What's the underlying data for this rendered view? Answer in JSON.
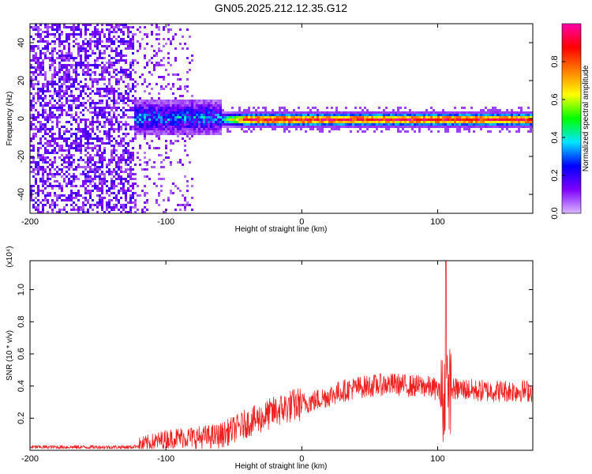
{
  "title": "GN05.2025.212.12.35.G12",
  "chart_data": [
    {
      "type": "heatmap",
      "xlabel": "Height of straight line (km)",
      "ylabel": "Frequency (Hz)",
      "xlim": [
        -200,
        170
      ],
      "ylim": [
        -50,
        50
      ],
      "x_ticks": [
        -200,
        -100,
        0,
        100
      ],
      "x_tick_labels": [
        "-200",
        "-100",
        "0",
        "100"
      ],
      "y_ticks": [
        -40,
        -20,
        0,
        20,
        40
      ],
      "y_tick_labels": [
        "-40",
        "-20",
        "0",
        "20",
        "40"
      ],
      "colorbar": {
        "label": "Normalized spectral amplitude",
        "range": [
          0.0,
          1.0
        ],
        "ticks": [
          0.0,
          0.2,
          0.4,
          0.6,
          0.8
        ],
        "tick_labels": [
          "0.0",
          "0.2",
          "0.4",
          "0.6",
          "0.8"
        ],
        "colors": [
          "#d8b8ff",
          "#7f00ff",
          "#0000ff",
          "#00e5ff",
          "#00ff00",
          "#ffff00",
          "#ff7f00",
          "#ff0000",
          "#ff00aa"
        ]
      },
      "features": [
        {
          "region": "noise",
          "x_range": [
            -200,
            -125
          ],
          "freq_range": [
            -50,
            50
          ],
          "amplitude": 0.12
        },
        {
          "region": "broadband-signal",
          "x_range": [
            -125,
            -60
          ],
          "freq_range": [
            -8,
            10
          ],
          "amplitude": 0.3
        },
        {
          "region": "narrowband-line",
          "x_range": [
            -60,
            170
          ],
          "freq": 0,
          "amplitude": 0.9
        }
      ]
    },
    {
      "type": "line",
      "xlabel": "Height of straight line (km)",
      "ylabel": "SNR (10 * v/v)",
      "y_scale_note": "(x10⁴)",
      "xlim": [
        -200,
        170
      ],
      "ylim": [
        0.0,
        1.18
      ],
      "x_ticks": [
        -200,
        -100,
        0,
        100
      ],
      "x_tick_labels": [
        "-200",
        "-100",
        "0",
        "100"
      ],
      "y_ticks": [
        0.2,
        0.4,
        0.6,
        0.8,
        1.0
      ],
      "y_tick_labels": [
        "0.2",
        "0.4",
        "0.6",
        "0.8",
        "1.0"
      ],
      "series": [
        {
          "color": "#ef2020",
          "x": [
            -200,
            -175,
            -150,
            -125,
            -110,
            -100,
            -90,
            -75,
            -60,
            -50,
            -40,
            -30,
            -20,
            -10,
            0,
            10,
            20,
            30,
            40,
            50,
            60,
            70,
            80,
            90,
            100,
            104,
            106,
            108,
            110,
            120,
            130,
            140,
            150,
            160,
            170
          ],
          "values": [
            0.02,
            0.02,
            0.02,
            0.02,
            0.05,
            0.07,
            0.08,
            0.08,
            0.09,
            0.13,
            0.17,
            0.2,
            0.24,
            0.27,
            0.29,
            0.31,
            0.34,
            0.37,
            0.39,
            0.4,
            0.41,
            0.41,
            0.4,
            0.4,
            0.38,
            0.3,
            0.45,
            0.36,
            0.38,
            0.38,
            0.37,
            0.37,
            0.37,
            0.37,
            0.37
          ]
        }
      ]
    }
  ]
}
